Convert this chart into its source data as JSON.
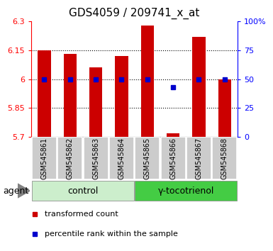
{
  "title": "GDS4059 / 209741_x_at",
  "samples": [
    "GSM545861",
    "GSM545862",
    "GSM545863",
    "GSM545864",
    "GSM545865",
    "GSM545866",
    "GSM545867",
    "GSM545868"
  ],
  "red_values": [
    6.15,
    6.13,
    6.06,
    6.12,
    6.28,
    5.72,
    6.22,
    6.0
  ],
  "blue_values": [
    50,
    50,
    50,
    50,
    50,
    43,
    50,
    50
  ],
  "ylim_left": [
    5.7,
    6.3
  ],
  "ylim_right": [
    0,
    100
  ],
  "yticks_left": [
    5.7,
    5.85,
    6.0,
    6.15,
    6.3
  ],
  "yticks_right": [
    0,
    25,
    50,
    75,
    100
  ],
  "ytick_labels_left": [
    "5.7",
    "5.85",
    "6",
    "6.15",
    "6.3"
  ],
  "ytick_labels_right": [
    "0",
    "25",
    "50",
    "75",
    "100%"
  ],
  "grid_lines": [
    5.85,
    6.0,
    6.15
  ],
  "bar_width": 0.5,
  "bar_color": "#cc0000",
  "bar_bottom": 5.7,
  "blue_marker_color": "#0000cc",
  "blue_marker_size": 5,
  "control_label": "control",
  "treatment_label": "γ-tocotrienol",
  "agent_label": "agent",
  "control_bg": "#cceecc",
  "treatment_bg": "#44cc44",
  "sample_bg": "#cccccc",
  "legend_red_label": "transformed count",
  "legend_blue_label": "percentile rank within the sample",
  "title_fontsize": 11,
  "tick_fontsize": 8,
  "sample_fontsize": 7,
  "legend_fontsize": 8,
  "agent_fontsize": 9
}
